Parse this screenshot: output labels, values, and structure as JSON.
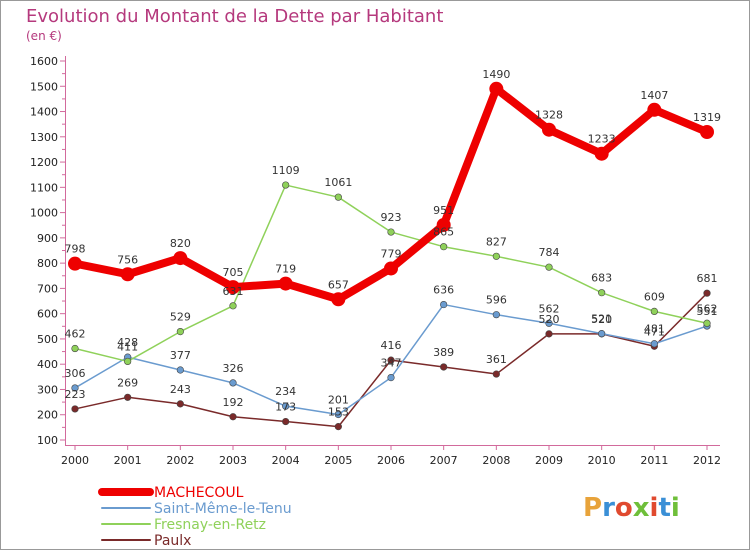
{
  "chart_data": {
    "type": "line",
    "title": "Evolution du Montant de la Dette par Habitant",
    "subtitle": "(en €)",
    "categories": [
      "2000",
      "2001",
      "2002",
      "2003",
      "2004",
      "2005",
      "2006",
      "2007",
      "2008",
      "2009",
      "2010",
      "2011",
      "2012"
    ],
    "ylim": [
      100,
      1600
    ],
    "yticks": [
      100,
      200,
      300,
      400,
      500,
      600,
      700,
      800,
      900,
      1000,
      1100,
      1200,
      1300,
      1400,
      1500,
      1600
    ],
    "grid": false,
    "legend_position": "bottom-left",
    "series": [
      {
        "name": "MACHECOUL",
        "color": "#ee0000",
        "values": [
          798,
          756,
          820,
          705,
          719,
          657,
          779,
          951,
          1490,
          1328,
          1233,
          1407,
          1319
        ]
      },
      {
        "name": "Saint-Même-le-Tenu",
        "color": "#6a9bcf",
        "values": [
          306,
          428,
          377,
          326,
          234,
          201,
          347,
          636,
          596,
          562,
          521,
          481,
          551
        ]
      },
      {
        "name": "Fresnay-en-Retz",
        "color": "#8fd15a",
        "values": [
          462,
          411,
          529,
          631,
          1109,
          1061,
          923,
          865,
          827,
          784,
          683,
          609,
          562
        ]
      },
      {
        "name": "Paulx",
        "color": "#7a2a2a",
        "values": [
          223,
          269,
          243,
          192,
          173,
          153,
          416,
          389,
          361,
          520,
          520,
          471,
          681
        ]
      }
    ]
  },
  "logo": {
    "text": "Proxiti"
  }
}
